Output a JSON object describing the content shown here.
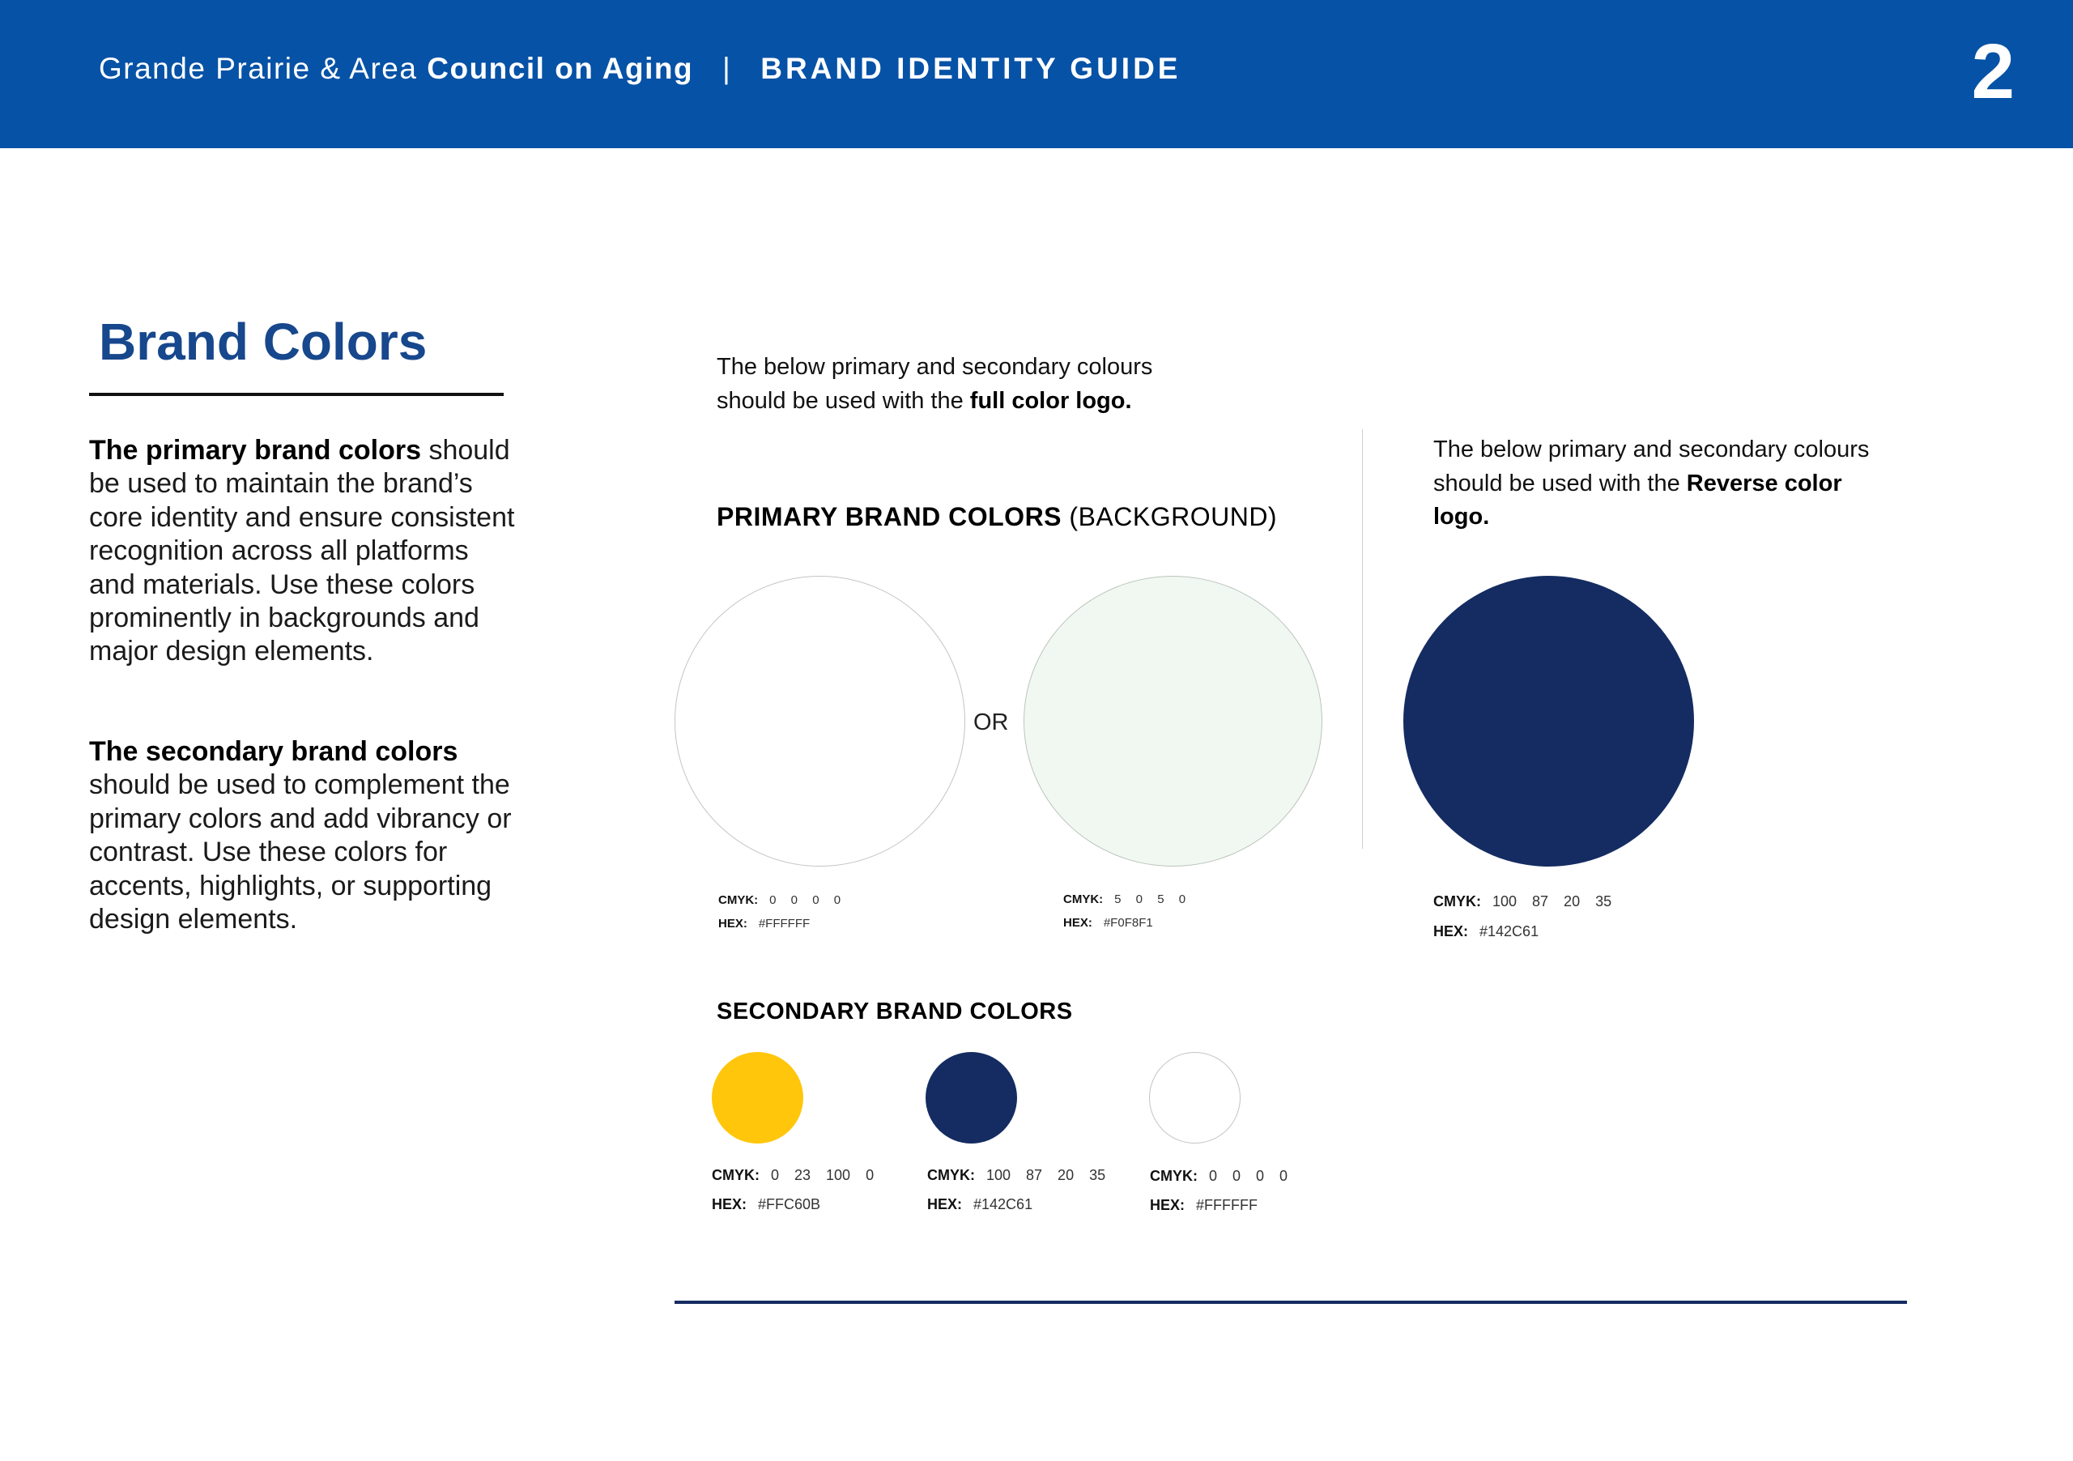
{
  "header": {
    "org_light": "Grande Prairie & Area ",
    "org_bold": "Council on Aging",
    "separator": "|",
    "guide_title": "BRAND IDENTITY GUIDE",
    "page_number": "2"
  },
  "sidebar": {
    "title": "Brand Colors",
    "primary_lead": "The primary brand colors",
    "primary_body": " should be used to maintain the brand’s core identity and ensure consistent recognition across all platforms and materials. Use these colors prominently in backgrounds and major design elements.",
    "secondary_lead": "The secondary brand colors",
    "secondary_body": " should be used to complement the primary colors and add vibrancy or contrast. Use these colors for accents, highlights, or supporting design elements."
  },
  "full_color": {
    "intro_text": "The below primary and secondary colours should be used with the ",
    "intro_bold": "full color logo.",
    "heading_bold": "PRIMARY BRAND COLORS",
    "heading_light": " (BACKGROUND)",
    "or_label": "OR",
    "swatches": [
      {
        "color": "#FFFFFF",
        "cmyk_label": "CMYK:",
        "cmyk": "0 0 0 0",
        "hex_label": "HEX:",
        "hex": "#FFFFFF"
      },
      {
        "color": "#F0F8F1",
        "cmyk_label": "CMYK:",
        "cmyk": "5 0 5 0",
        "hex_label": "HEX:",
        "hex": "#F0F8F1"
      }
    ]
  },
  "reverse": {
    "intro_text": "The below primary and secondary colours should be used with the ",
    "intro_bold": "Reverse color logo.",
    "swatch": {
      "color": "#142C61",
      "cmyk_label": "CMYK:",
      "cmyk": "100 87 20 35",
      "hex_label": "HEX:",
      "hex": "#142C61"
    }
  },
  "secondary": {
    "heading": "SECONDARY BRAND COLORS",
    "swatches": [
      {
        "color": "#FFC60B",
        "cmyk_label": "CMYK:",
        "cmyk": "0 23 100 0",
        "hex_label": "HEX:",
        "hex": "#FFC60B"
      },
      {
        "color": "#142C61",
        "cmyk_label": "CMYK:",
        "cmyk": "100 87 20 35",
        "hex_label": "HEX:",
        "hex": "#142C61"
      },
      {
        "color": "#FFFFFF",
        "cmyk_label": "CMYK:",
        "cmyk": "0 0 0 0",
        "hex_label": "HEX:",
        "hex": "#FFFFFF"
      }
    ]
  },
  "colors": {
    "header_bg": "#0652A6",
    "title": "#17478C",
    "rule": "#142C61"
  }
}
